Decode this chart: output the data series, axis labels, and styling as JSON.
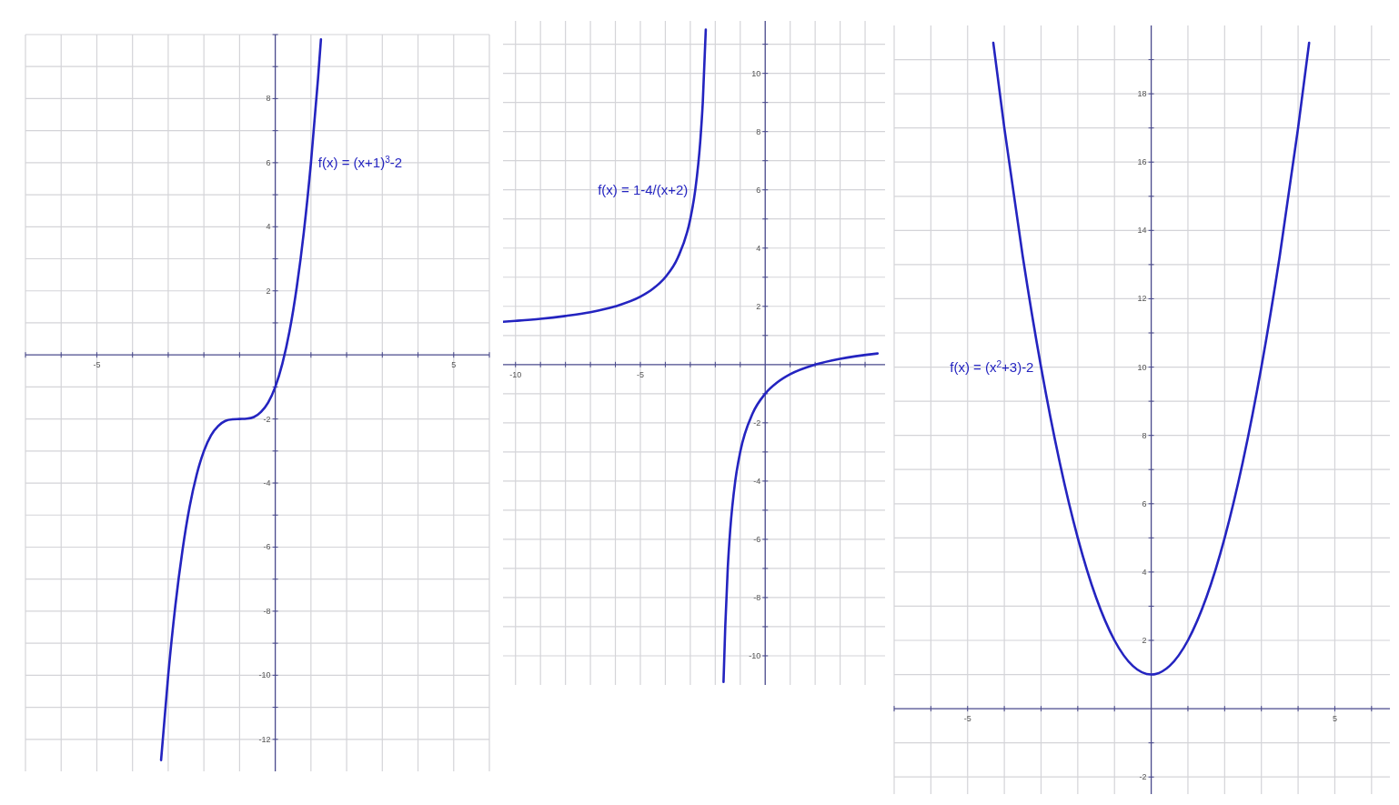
{
  "chart_data": [
    {
      "type": "line",
      "xlim": [
        -7,
        6
      ],
      "ylim": [
        -13,
        10
      ],
      "xticks": [
        {
          "value": -7,
          "label": null
        },
        {
          "value": -6,
          "label": null
        },
        -5,
        {
          "value": -4,
          "label": null
        },
        {
          "value": -3,
          "label": null
        },
        {
          "value": -2,
          "label": null
        },
        {
          "value": -1,
          "label": null
        },
        {
          "value": 1,
          "label": null
        },
        {
          "value": 2,
          "label": null
        },
        {
          "value": 3,
          "label": null
        },
        {
          "value": 4,
          "label": null
        },
        5,
        {
          "value": 6,
          "label": null
        }
      ],
      "yticks": [
        -12,
        {
          "value": -11,
          "label": null
        },
        -10,
        {
          "value": -9,
          "label": null
        },
        -8,
        {
          "value": -7,
          "label": null
        },
        -6,
        {
          "value": -5,
          "label": null
        },
        -4,
        {
          "value": -3,
          "label": null
        },
        -2,
        {
          "value": -1,
          "label": null
        },
        {
          "value": 1,
          "label": null
        },
        2,
        {
          "value": 3,
          "label": null
        },
        4,
        {
          "value": 5,
          "label": null
        },
        6,
        {
          "value": 7,
          "label": null
        },
        8,
        {
          "value": 9,
          "label": null
        },
        {
          "value": 10,
          "label": null
        }
      ],
      "grid": true,
      "series": [
        {
          "name": "f(x) = (x+1)$^{3}$-2",
          "color": "#2424c0",
          "x": [
            -3.2,
            -3,
            -2.8,
            -2.6,
            -2.4,
            -2.2,
            -2,
            -1.8,
            -1.6,
            -1.4,
            -1.2,
            -1,
            -0.8,
            -0.6,
            -0.4,
            -0.2,
            0,
            0.2,
            0.4,
            0.6,
            0.8,
            1,
            1.2,
            1.28
          ],
          "values": [
            -12.65,
            -10,
            -7.83,
            -6.1,
            -4.74,
            -3.73,
            -3,
            -2.51,
            -2.22,
            -2.06,
            -2.01,
            -2,
            -1.99,
            -1.94,
            -1.78,
            -1.49,
            -1,
            -0.27,
            0.74,
            2.1,
            3.83,
            6,
            8.65,
            9.85
          ]
        }
      ]
    },
    {
      "type": "line",
      "xlim": [
        -10.5,
        4.8
      ],
      "ylim": [
        -11,
        11.8
      ],
      "xticks": [
        -10,
        {
          "value": -9,
          "label": null
        },
        {
          "value": -8,
          "label": null
        },
        {
          "value": -7,
          "label": null
        },
        {
          "value": -6,
          "label": null
        },
        -5,
        {
          "value": -4,
          "label": null
        },
        {
          "value": -3,
          "label": null
        },
        {
          "value": -2,
          "label": null
        },
        {
          "value": -1,
          "label": null
        },
        {
          "value": 1,
          "label": null
        },
        {
          "value": 2,
          "label": null
        },
        {
          "value": 3,
          "label": null
        },
        {
          "value": 4,
          "label": null
        }
      ],
      "yticks": [
        -10,
        {
          "value": -9,
          "label": null
        },
        -8,
        {
          "value": -7,
          "label": null
        },
        -6,
        {
          "value": -5,
          "label": null
        },
        -4,
        {
          "value": -3,
          "label": null
        },
        -2,
        {
          "value": -1,
          "label": null
        },
        {
          "value": 1,
          "label": null
        },
        2,
        {
          "value": 3,
          "label": null
        },
        4,
        {
          "value": 5,
          "label": null
        },
        6,
        {
          "value": 7,
          "label": null
        },
        8,
        {
          "value": 9,
          "label": null
        },
        10,
        {
          "value": 11,
          "label": null
        }
      ],
      "grid": true,
      "series": [
        {
          "name": "f(x) = 1-4/(x+2)",
          "color": "#2424c0",
          "x": [
            -10.5,
            -10,
            -9,
            -8,
            -7,
            -6,
            -5,
            -4.5,
            -4,
            -3.5,
            -3,
            -2.8,
            -2.6,
            -2.5,
            -2.38,
            -2,
            -1.67,
            -1.6,
            -1.5,
            -1.4,
            -1.2,
            -1,
            -0.5,
            0,
            0.5,
            1,
            2,
            3,
            4.5
          ],
          "values": [
            1.47,
            1.5,
            1.57,
            1.67,
            1.8,
            2,
            2.33,
            2.6,
            3,
            3.67,
            5,
            6,
            7.67,
            9,
            11.5,
            null,
            -10.9,
            -9,
            -7,
            -5.67,
            -4,
            -3,
            -1.67,
            -1,
            -0.6,
            -0.33,
            0,
            0.2,
            0.38
          ]
        }
      ]
    },
    {
      "type": "line",
      "xlim": [
        -7,
        6.5
      ],
      "ylim": [
        -2.5,
        20
      ],
      "xticks": [
        {
          "value": -7,
          "label": null
        },
        {
          "value": -6,
          "label": null
        },
        -5,
        {
          "value": -4,
          "label": null
        },
        {
          "value": -3,
          "label": null
        },
        {
          "value": -2,
          "label": null
        },
        {
          "value": -1,
          "label": null
        },
        {
          "value": 1,
          "label": null
        },
        {
          "value": 2,
          "label": null
        },
        {
          "value": 3,
          "label": null
        },
        {
          "value": 4,
          "label": null
        },
        5,
        {
          "value": 6,
          "label": null
        }
      ],
      "yticks": [
        -2,
        {
          "value": -1,
          "label": null
        },
        {
          "value": 1,
          "label": null
        },
        2,
        {
          "value": 3,
          "label": null
        },
        4,
        {
          "value": 5,
          "label": null
        },
        6,
        {
          "value": 7,
          "label": null
        },
        8,
        {
          "value": 9,
          "label": null
        },
        10,
        {
          "value": 11,
          "label": null
        },
        12,
        {
          "value": 13,
          "label": null
        },
        14,
        {
          "value": 15,
          "label": null
        },
        16,
        {
          "value": 17,
          "label": null
        },
        18,
        {
          "value": 19,
          "label": null
        }
      ],
      "grid": true,
      "series": [
        {
          "name": "f(x) = (x$^{2}$+3)-2",
          "color": "#2424c0",
          "x": [
            -4.3,
            -4,
            -3.5,
            -3,
            -2.5,
            -2,
            -1.5,
            -1,
            -0.5,
            0,
            0.5,
            1,
            1.5,
            2,
            2.5,
            3,
            3.5,
            4,
            4.3
          ],
          "values": [
            19.49,
            17,
            13.25,
            10,
            7.25,
            5,
            3.25,
            2,
            1.25,
            1,
            1.25,
            2,
            3.25,
            5,
            7.25,
            10,
            13.25,
            17,
            19.49
          ]
        }
      ]
    }
  ]
}
